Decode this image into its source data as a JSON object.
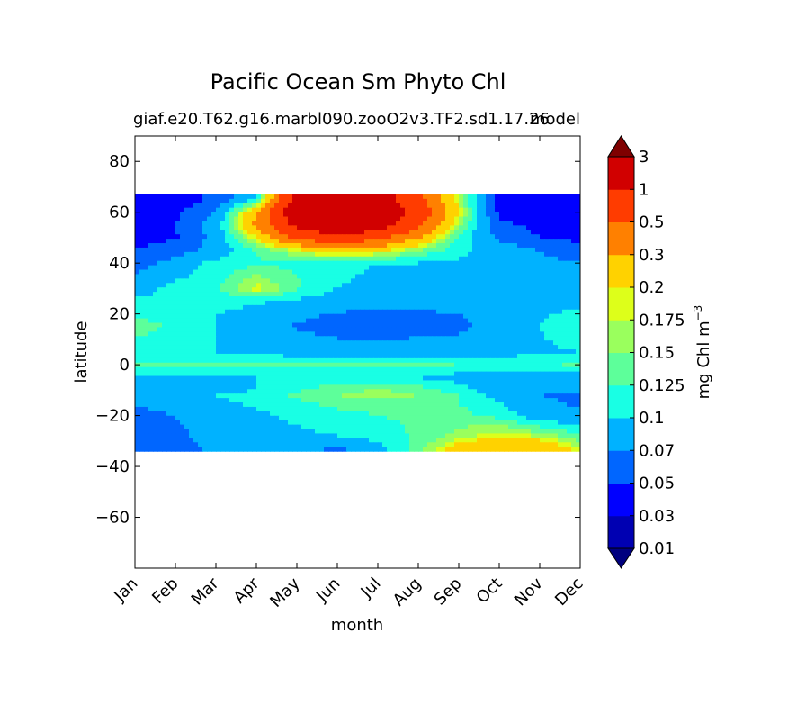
{
  "chart_data": {
    "type": "heatmap",
    "title": "Pacific Ocean Sm Phyto Chl",
    "subtitle_left": "giaf.e20.T62.g16.marbl090.zooO2v3.TF2.sd1.17.26",
    "subtitle_right": "model",
    "xlabel": "month",
    "ylabel": "latitude",
    "x_categories": [
      "Jan",
      "Feb",
      "Mar",
      "Apr",
      "May",
      "Jun",
      "Jul",
      "Aug",
      "Sep",
      "Oct",
      "Nov",
      "Dec"
    ],
    "y_ticks": [
      80,
      60,
      40,
      20,
      0,
      -20,
      -40,
      -60
    ],
    "y_tick_labels": [
      "80",
      "60",
      "40",
      "20",
      "0",
      "−20",
      "−40",
      "−60"
    ],
    "ylim": [
      -80,
      90
    ],
    "data_lat_range": [
      -34,
      67
    ],
    "colorbar": {
      "label": "mg Chl m",
      "label_superscript": "−3",
      "levels": [
        "0.01",
        "0.03",
        "0.05",
        "0.07",
        "0.1",
        "0.125",
        "0.15",
        "0.175",
        "0.2",
        "0.3",
        "0.5",
        "1",
        "3"
      ],
      "colors": [
        "#00007f",
        "#0000b2",
        "#0000ff",
        "#0066ff",
        "#00b2ff",
        "#19ffe4",
        "#5dff9a",
        "#9aff5d",
        "#ddff1a",
        "#ffd200",
        "#ff8000",
        "#ff3c00",
        "#d10000",
        "#7f0000"
      ],
      "extend": "both"
    },
    "values": [
      [
        0.038,
        0.04,
        0.055,
        0.1,
        1.5,
        2.0,
        1.5,
        0.6,
        0.18,
        0.04,
        0.035,
        0.032
      ],
      [
        0.042,
        0.046,
        0.07,
        0.3,
        1.8,
        3.0,
        2.0,
        0.8,
        0.2,
        0.045,
        0.04,
        0.035
      ],
      [
        0.045,
        0.05,
        0.085,
        0.35,
        1.2,
        2.0,
        1.5,
        0.6,
        0.16,
        0.055,
        0.045,
        0.04
      ],
      [
        0.045,
        0.048,
        0.08,
        0.2,
        0.6,
        0.8,
        0.6,
        0.3,
        0.12,
        0.065,
        0.05,
        0.045
      ],
      [
        0.05,
        0.06,
        0.08,
        0.13,
        0.18,
        0.25,
        0.22,
        0.15,
        0.11,
        0.085,
        0.07,
        0.06
      ],
      [
        0.06,
        0.08,
        0.11,
        0.12,
        0.12,
        0.11,
        0.1,
        0.1,
        0.095,
        0.085,
        0.075,
        0.07
      ],
      [
        0.085,
        0.11,
        0.12,
        0.19,
        0.13,
        0.1,
        0.09,
        0.09,
        0.09,
        0.085,
        0.08,
        0.08
      ],
      [
        0.105,
        0.11,
        0.11,
        0.105,
        0.095,
        0.085,
        0.08,
        0.085,
        0.085,
        0.085,
        0.085,
        0.09
      ],
      [
        0.12,
        0.11,
        0.1,
        0.09,
        0.075,
        0.068,
        0.065,
        0.065,
        0.07,
        0.08,
        0.095,
        0.11
      ],
      [
        0.14,
        0.12,
        0.1,
        0.09,
        0.068,
        0.062,
        0.06,
        0.06,
        0.065,
        0.08,
        0.1,
        0.125
      ],
      [
        0.11,
        0.105,
        0.1,
        0.095,
        0.085,
        0.08,
        0.08,
        0.085,
        0.085,
        0.09,
        0.095,
        0.1
      ],
      [
        0.13,
        0.135,
        0.14,
        0.135,
        0.13,
        0.13,
        0.13,
        0.13,
        0.125,
        0.12,
        0.12,
        0.13
      ],
      [
        0.09,
        0.09,
        0.095,
        0.1,
        0.105,
        0.11,
        0.11,
        0.1,
        0.09,
        0.085,
        0.085,
        0.088
      ],
      [
        0.08,
        0.085,
        0.09,
        0.1,
        0.12,
        0.14,
        0.15,
        0.14,
        0.11,
        0.085,
        0.075,
        0.075
      ],
      [
        0.085,
        0.09,
        0.1,
        0.11,
        0.13,
        0.15,
        0.165,
        0.15,
        0.125,
        0.09,
        0.07,
        0.068
      ],
      [
        0.075,
        0.085,
        0.095,
        0.105,
        0.12,
        0.135,
        0.14,
        0.135,
        0.125,
        0.1,
        0.075,
        0.065
      ],
      [
        0.06,
        0.07,
        0.085,
        0.095,
        0.105,
        0.115,
        0.125,
        0.13,
        0.135,
        0.115,
        0.085,
        0.075
      ],
      [
        0.055,
        0.065,
        0.08,
        0.09,
        0.095,
        0.1,
        0.11,
        0.13,
        0.16,
        0.2,
        0.17,
        0.13
      ],
      [
        0.055,
        0.06,
        0.075,
        0.08,
        0.08,
        0.065,
        0.09,
        0.14,
        0.23,
        0.3,
        0.28,
        0.18
      ]
    ],
    "row_latitudes": [
      65,
      60,
      55,
      50,
      45,
      40,
      30,
      25,
      20,
      15,
      5,
      0,
      -5,
      -10,
      -12,
      -15,
      -20,
      -28,
      -33
    ],
    "col_positions": [
      0,
      1,
      2,
      3,
      4,
      5,
      6,
      7,
      8,
      9,
      10,
      11
    ]
  }
}
